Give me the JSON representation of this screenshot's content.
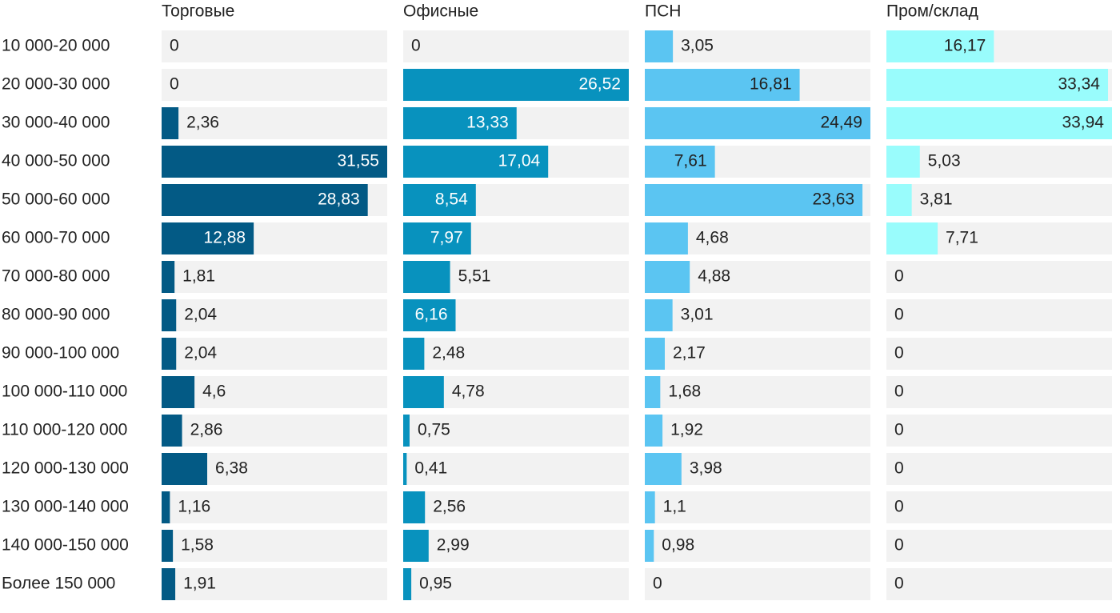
{
  "chart_data": {
    "type": "bar",
    "orientation": "horizontal",
    "categories": [
      "10 000-20 000",
      "20 000-30 000",
      "30 000-40 000",
      "40 000-50 000",
      "50 000-60 000",
      "60 000-70 000",
      "70 000-80 000",
      "80 000-90 000",
      "90 000-100 000",
      "100 000-110 000",
      "110 000-120 000",
      "120 000-130 000",
      "130 000-140 000",
      "140 000-150 000",
      "Более 150 000"
    ],
    "series": [
      {
        "name": "Торговые",
        "color": "#035a85",
        "xlim": [
          0,
          31.55
        ],
        "values": [
          0,
          0,
          2.36,
          31.55,
          28.83,
          12.88,
          1.81,
          2.04,
          2.04,
          4.6,
          2.86,
          6.38,
          1.16,
          1.58,
          1.91
        ],
        "value_labels": [
          "0",
          "0",
          "2,36",
          "31,55",
          "28,83",
          "12,88",
          "1,81",
          "2,04",
          "2,04",
          "4,6",
          "2,86",
          "6,38",
          "1,16",
          "1,58",
          "1,91"
        ]
      },
      {
        "name": "Офисные",
        "color": "#0892be",
        "xlim": [
          0,
          26.52
        ],
        "values": [
          0,
          26.52,
          13.33,
          17.04,
          8.54,
          7.97,
          5.51,
          6.16,
          2.48,
          4.78,
          0.75,
          0.41,
          2.56,
          2.99,
          0.95
        ],
        "value_labels": [
          "0",
          "26,52",
          "13,33",
          "17,04",
          "8,54",
          "7,97",
          "5,51",
          "6,16",
          "2,48",
          "4,78",
          "0,75",
          "0,41",
          "2,56",
          "2,99",
          "0,95"
        ]
      },
      {
        "name": "ПСН",
        "color": "#5bc5f2",
        "xlim": [
          0,
          24.49
        ],
        "values": [
          3.05,
          16.81,
          24.49,
          7.61,
          23.63,
          4.68,
          4.88,
          3.01,
          2.17,
          1.68,
          1.92,
          3.98,
          1.1,
          0.98,
          0
        ],
        "value_labels": [
          "3,05",
          "16,81",
          "24,49",
          "7,61",
          "23,63",
          "4,68",
          "4,88",
          "3,01",
          "2,17",
          "1,68",
          "1,92",
          "3,98",
          "1,1",
          "0,98",
          "0"
        ]
      },
      {
        "name": "Пром/склад",
        "color": "#99fcfc",
        "xlim": [
          0,
          33.94
        ],
        "values": [
          16.17,
          33.34,
          33.94,
          5.03,
          3.81,
          7.71,
          0,
          0,
          0,
          0,
          0,
          0,
          0,
          0,
          0
        ],
        "value_labels": [
          "16,17",
          "33,34",
          "33,94",
          "5,03",
          "3,81",
          "7,71",
          "0",
          "0",
          "0",
          "0",
          "0",
          "0",
          "0",
          "0",
          "0"
        ]
      }
    ]
  }
}
